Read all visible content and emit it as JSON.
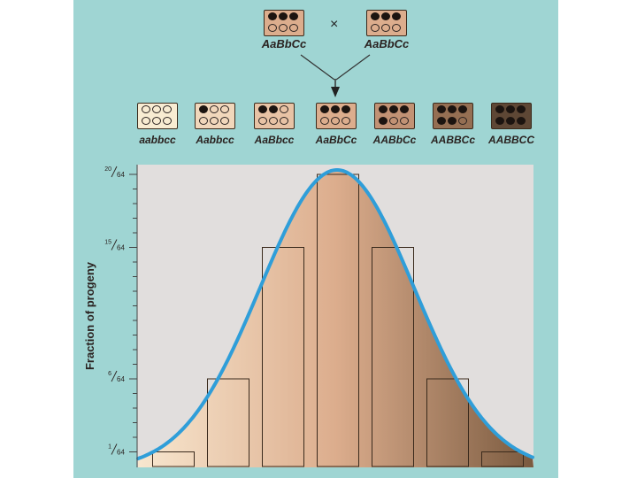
{
  "cross": {
    "symbol": "×",
    "parents": [
      {
        "label": "AaBbCc",
        "alleles": [
          1,
          1,
          1,
          0,
          0,
          0
        ]
      },
      {
        "label": "AaBbCc",
        "alleles": [
          1,
          1,
          1,
          0,
          0,
          0
        ]
      }
    ]
  },
  "offspring": [
    {
      "label": "aabbcc",
      "alleles": [
        0,
        0,
        0,
        0,
        0,
        0
      ],
      "color": "#f8ecd2"
    },
    {
      "label": "Aabbcc",
      "alleles": [
        1,
        0,
        0,
        0,
        0,
        0
      ],
      "color": "#f1d7bb"
    },
    {
      "label": "AaBbcc",
      "alleles": [
        1,
        1,
        0,
        0,
        0,
        0
      ],
      "color": "#e8c3a5"
    },
    {
      "label": "AaBbCc",
      "alleles": [
        1,
        1,
        1,
        0,
        0,
        0
      ],
      "color": "#dcad8d"
    },
    {
      "label": "AABbCc",
      "alleles": [
        1,
        1,
        1,
        1,
        0,
        0
      ],
      "color": "#c29274"
    },
    {
      "label": "AABBCc",
      "alleles": [
        1,
        1,
        1,
        1,
        1,
        0
      ],
      "color": "#956f53"
    },
    {
      "label": "AABBCC",
      "alleles": [
        1,
        1,
        1,
        1,
        1,
        1
      ],
      "color": "#5e4735"
    }
  ],
  "colors": {
    "panel_bg": "#9fd5d3",
    "plot_bg": "#e1dedd",
    "curve": "#2f9ed9",
    "bar_stroke": "#3a2a1c",
    "fill_light": "#f8e7cf",
    "fill_mid": "#dcad8d",
    "fill_dark": "#7a5a3f"
  },
  "chart_data": {
    "type": "bar",
    "ylabel": "Fraction of progeny",
    "categories": [
      "aabbcc",
      "Aabbcc",
      "AaBbcc",
      "AaBbCc",
      "AABbCc",
      "AABBCc",
      "AABBCC"
    ],
    "values": [
      0.015625,
      0.09375,
      0.234375,
      0.3125,
      0.234375,
      0.09375,
      0.015625
    ],
    "ylim": [
      0,
      0.3125
    ],
    "y_tick_labels": [
      {
        "value": 0.015625,
        "num": "1",
        "den": "64"
      },
      {
        "value": 0.09375,
        "num": "6",
        "den": "64"
      },
      {
        "value": 0.234375,
        "num": "15",
        "den": "64"
      },
      {
        "value": 0.3125,
        "num": "20",
        "den": "64"
      }
    ],
    "y_minor_ticks_per_64": 1,
    "curve": "normal distribution fit"
  }
}
